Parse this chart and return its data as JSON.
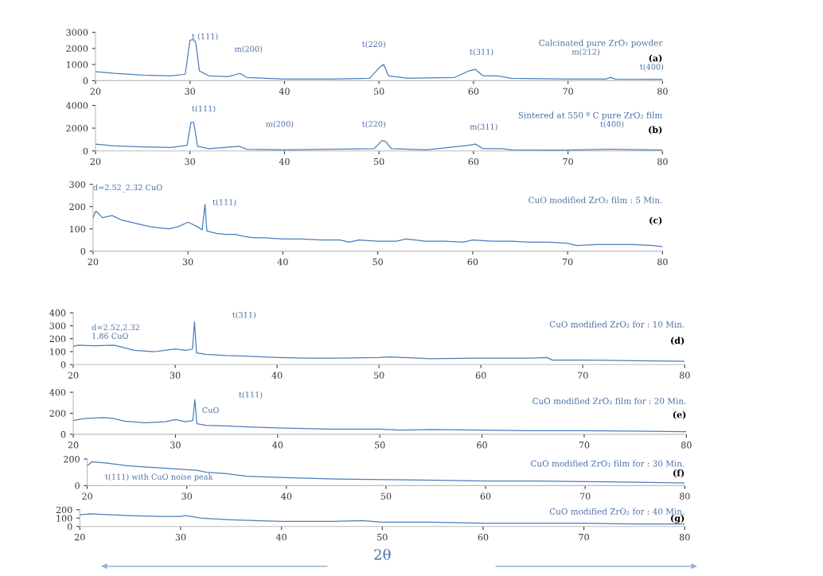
{
  "chart_data": [
    {
      "type": "line",
      "title": "Calcinated pure ZrO₂ powder",
      "xlim": [
        20,
        80
      ],
      "xticks": [
        20,
        30,
        40,
        50,
        60,
        70,
        80
      ],
      "ylim": [
        0,
        3000
      ],
      "yticks": [
        0,
        1000,
        2000,
        3000
      ],
      "grid": false,
      "series": [
        {
          "color": "#4a7ebb",
          "x": [
            20,
            22,
            25,
            28,
            29.5,
            30,
            30.3,
            30.6,
            31,
            32,
            34,
            35.3,
            36,
            38,
            40,
            45,
            49,
            50.2,
            50.5,
            51,
            53,
            58,
            59.5,
            60.2,
            61,
            62.5,
            64,
            70,
            74,
            74.5,
            75,
            80
          ],
          "values": [
            550,
            450,
            350,
            300,
            400,
            2500,
            2550,
            2400,
            600,
            300,
            250,
            450,
            200,
            150,
            100,
            100,
            150,
            900,
            1000,
            300,
            150,
            200,
            600,
            700,
            300,
            300,
            150,
            100,
            100,
            200,
            100,
            80
          ]
        }
      ],
      "annotations": [
        "(a)",
        "t (111)",
        "m(200)",
        "t(220)",
        "t(311)",
        "m(212)",
        "t(400)"
      ]
    },
    {
      "type": "line",
      "title": "Sintered at 550 º C pure ZrO₂ film",
      "xlim": [
        20,
        80
      ],
      "xticks": [
        20,
        30,
        40,
        50,
        60,
        70,
        80
      ],
      "ylim": [
        0,
        4000
      ],
      "yticks": [
        0,
        2000,
        4000
      ],
      "grid": false,
      "series": [
        {
          "color": "#4a7ebb",
          "x": [
            20,
            22,
            25,
            28,
            29.7,
            30.1,
            30.4,
            30.8,
            32,
            35.2,
            36,
            40,
            49.5,
            50.3,
            50.7,
            51.3,
            55,
            59.5,
            60.2,
            61,
            63,
            64,
            70,
            74.5,
            80
          ],
          "values": [
            600,
            450,
            350,
            300,
            500,
            2500,
            2500,
            400,
            200,
            400,
            150,
            100,
            200,
            900,
            850,
            200,
            100,
            500,
            600,
            200,
            200,
            100,
            80,
            150,
            80
          ]
        }
      ],
      "annotations": [
        "(b)",
        "t(111)",
        "m(200)",
        "t(220)",
        "m(311)",
        "t(400)"
      ]
    },
    {
      "type": "line",
      "title": "CuO modified ZrO₂ film : 5 Min.",
      "xlim": [
        20,
        80
      ],
      "xticks": [
        20,
        30,
        40,
        50,
        60,
        70,
        80
      ],
      "ylim": [
        0,
        300
      ],
      "yticks": [
        0,
        100,
        200,
        300
      ],
      "grid": false,
      "series": [
        {
          "color": "#4a7ebb",
          "x": [
            20,
            20.3,
            21,
            22,
            23,
            24,
            25,
            26,
            27,
            28,
            29,
            30,
            31,
            31.5,
            31.8,
            32,
            33,
            34,
            35,
            36,
            37,
            38,
            40,
            42,
            44,
            46,
            47,
            48,
            50,
            52,
            53,
            55,
            57,
            59,
            60,
            62,
            64,
            66,
            68,
            70,
            71,
            73,
            75,
            77,
            79,
            80
          ],
          "values": [
            150,
            180,
            150,
            160,
            140,
            130,
            120,
            110,
            105,
            100,
            110,
            130,
            110,
            95,
            210,
            90,
            80,
            75,
            75,
            65,
            60,
            60,
            55,
            55,
            50,
            50,
            40,
            50,
            45,
            45,
            55,
            45,
            45,
            40,
            50,
            45,
            45,
            40,
            40,
            35,
            25,
            30,
            30,
            30,
            25,
            20
          ]
        }
      ],
      "annotations": [
        "(c)",
        "d=2.52_2.32 CuO",
        "t(111)"
      ]
    },
    {
      "type": "line",
      "title": "CuO modified ZrO₂ for : 10 Min.",
      "xlim": [
        20,
        80
      ],
      "xticks": [
        20,
        30,
        40,
        50,
        60,
        70,
        80
      ],
      "ylim": [
        0,
        400
      ],
      "yticks": [
        0,
        100,
        200,
        300,
        400
      ],
      "grid": false,
      "series": [
        {
          "color": "#4a7ebb",
          "x": [
            20,
            20.5,
            22,
            24,
            25,
            26,
            28,
            29,
            30,
            31,
            31.7,
            31.9,
            32.1,
            33,
            35,
            37,
            40,
            43,
            46,
            50,
            51,
            55,
            60,
            65,
            66.5,
            67,
            70,
            75,
            80
          ],
          "values": [
            140,
            150,
            145,
            150,
            130,
            110,
            100,
            110,
            120,
            110,
            120,
            330,
            90,
            80,
            70,
            65,
            55,
            50,
            50,
            55,
            60,
            45,
            50,
            50,
            55,
            35,
            35,
            30,
            25
          ]
        }
      ],
      "annotations": [
        "(d)",
        "d=2.52,2.32\n1.86 CuO",
        "t(311)"
      ]
    },
    {
      "type": "line",
      "title": "CuO modified ZrO₂ film for : 20 Min.",
      "xlim": [
        20,
        80
      ],
      "xticks": [
        20,
        30,
        40,
        50,
        60,
        70,
        80
      ],
      "ylim": [
        0,
        400
      ],
      "yticks": [
        0,
        200,
        400
      ],
      "grid": false,
      "series": [
        {
          "color": "#4a7ebb",
          "x": [
            20,
            21,
            23,
            24,
            25,
            27,
            29,
            30,
            31,
            31.7,
            31.9,
            32.1,
            33,
            35,
            37,
            40,
            45,
            50,
            52,
            55,
            60,
            65,
            70,
            75,
            80
          ],
          "values": [
            130,
            150,
            160,
            150,
            125,
            110,
            120,
            140,
            120,
            130,
            330,
            100,
            85,
            80,
            70,
            60,
            50,
            50,
            40,
            45,
            40,
            35,
            35,
            30,
            25
          ]
        }
      ],
      "annotations": [
        "(e)",
        "CuO",
        "t(111)"
      ]
    },
    {
      "type": "line",
      "title": "CuO modified ZrO₂ film for : 30 Min.",
      "xlim": [
        20,
        80
      ],
      "xticks": [
        20,
        30,
        40,
        50,
        60,
        70,
        80
      ],
      "ylim": [
        0,
        200
      ],
      "yticks": [
        0,
        200
      ],
      "grid": false,
      "series": [
        {
          "color": "#4a7ebb",
          "x": [
            20,
            20.5,
            22,
            24,
            26,
            28,
            30,
            31,
            32,
            34,
            36,
            40,
            45,
            50,
            55,
            60,
            65,
            70,
            75,
            80
          ],
          "values": [
            150,
            180,
            170,
            150,
            140,
            130,
            120,
            115,
            100,
            90,
            70,
            60,
            50,
            45,
            40,
            35,
            35,
            30,
            25,
            20
          ]
        }
      ],
      "annotations": [
        "(f)",
        "t(111) with CuO noise peak"
      ]
    },
    {
      "type": "line",
      "title": "CuO modified ZrO₂ for : 40 Min.",
      "xlabel": "2θ",
      "xlim": [
        20,
        80
      ],
      "xticks": [
        20,
        30,
        40,
        50,
        60,
        70,
        80
      ],
      "ylim": [
        0,
        200
      ],
      "yticks": [
        0,
        100,
        200
      ],
      "grid": false,
      "series": [
        {
          "color": "#4a7ebb",
          "x": [
            20,
            21,
            25,
            28,
            30,
            30.5,
            32,
            35,
            40,
            45,
            48,
            50,
            55,
            60,
            65,
            70,
            75,
            80
          ],
          "values": [
            140,
            150,
            130,
            120,
            120,
            130,
            100,
            80,
            60,
            60,
            70,
            50,
            50,
            40,
            40,
            40,
            30,
            30
          ]
        }
      ],
      "annotations": [
        "(g)"
      ]
    }
  ]
}
